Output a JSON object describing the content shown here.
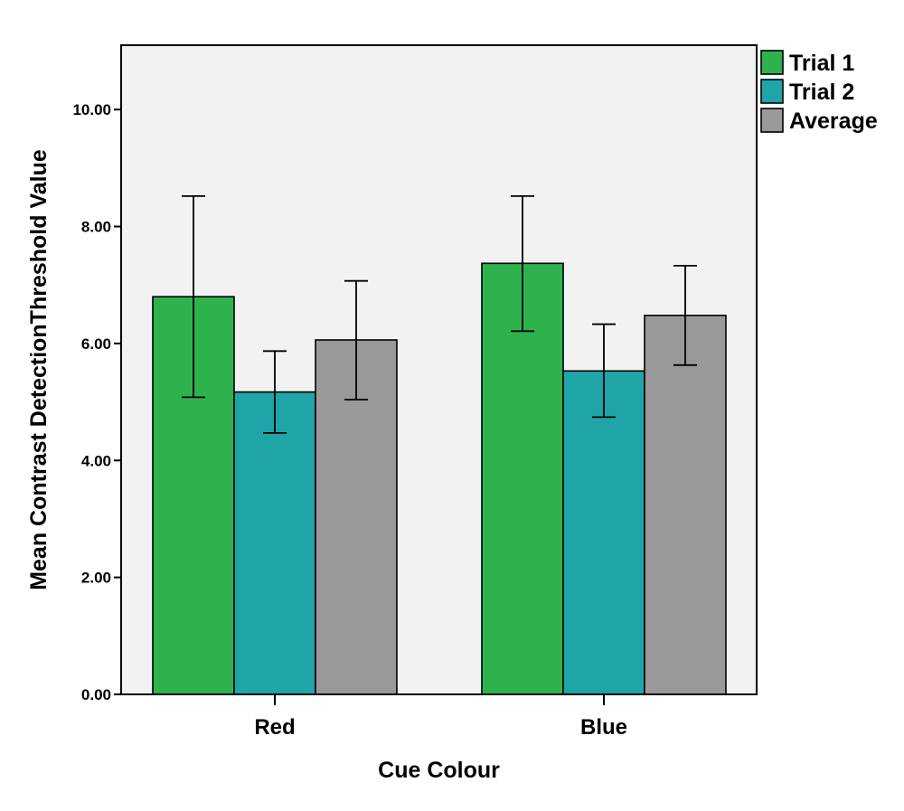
{
  "chart_data": {
    "type": "bar",
    "categories": [
      "Red",
      "Blue"
    ],
    "series": [
      {
        "name": "Trial 1",
        "values": [
          6.8,
          7.37
        ],
        "error_low": [
          5.08,
          6.21
        ],
        "error_high": [
          8.52,
          8.52
        ],
        "color": "#2eb24e"
      },
      {
        "name": "Trial 2",
        "values": [
          5.17,
          5.53
        ],
        "error_low": [
          4.47,
          4.74
        ],
        "error_high": [
          5.87,
          6.33
        ],
        "color": "#1fa5a8"
      },
      {
        "name": "Average",
        "values": [
          6.06,
          6.48
        ],
        "error_low": [
          5.04,
          5.63
        ],
        "error_high": [
          7.07,
          7.33
        ],
        "color": "#999999"
      }
    ],
    "xlabel": "Cue Colour",
    "ylabel": "Mean Contrast DetectionThreshold Value",
    "ylim": [
      0,
      11.1
    ],
    "yticks": [
      "0.00",
      "2.00",
      "4.00",
      "6.00",
      "8.00",
      "10.00"
    ],
    "ytick_values": [
      0,
      2,
      4,
      6,
      8,
      10
    ],
    "grid": false,
    "legend_position": "top-right",
    "plot_background": "#f2f2f2"
  }
}
